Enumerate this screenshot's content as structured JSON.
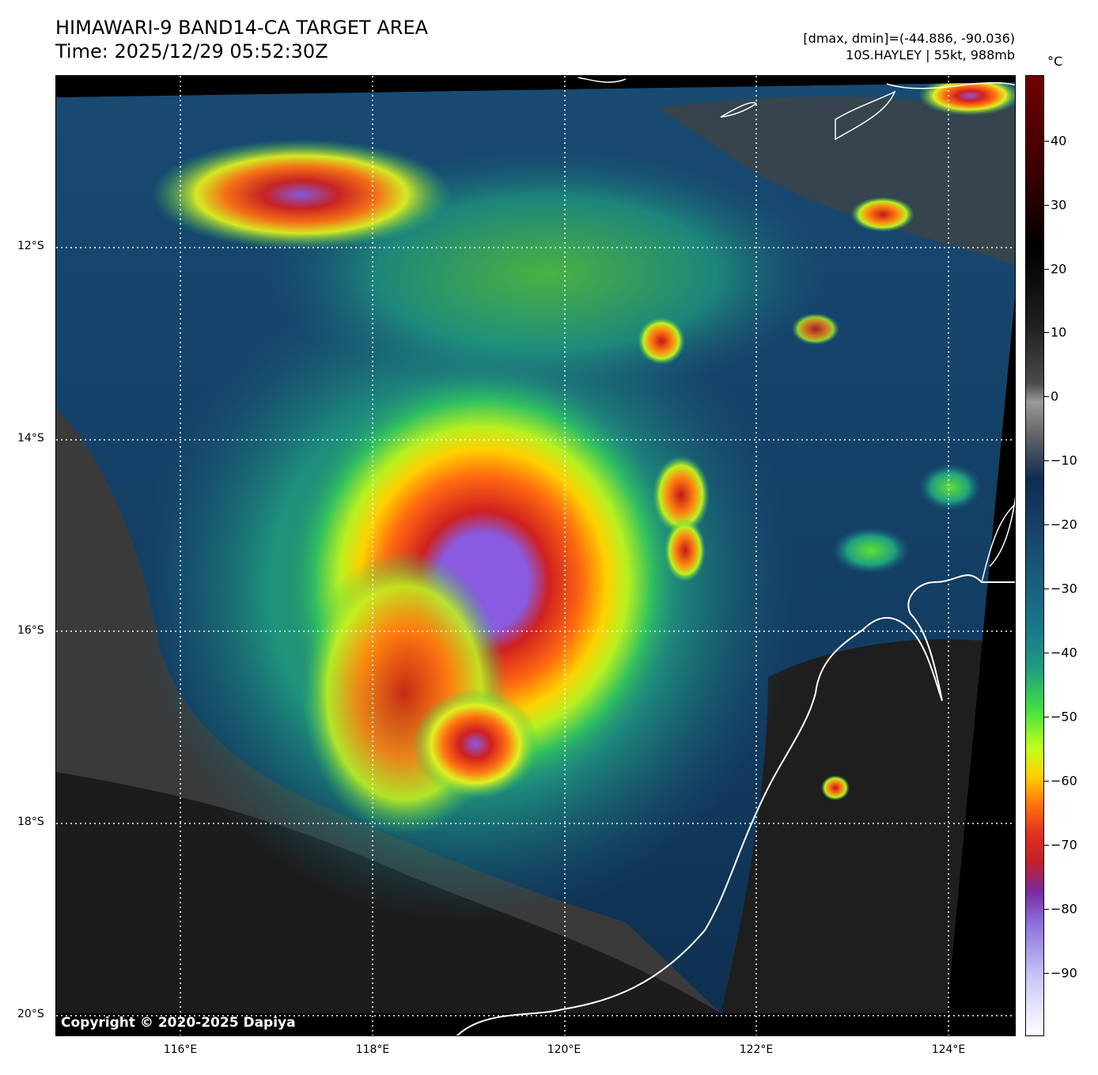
{
  "header": {
    "title_line1": "HIMAWARI-9 BAND14-CA TARGET AREA",
    "title_line2": "Time: 2025/12/29 05:52:30Z",
    "dminmax": "[dmax, dmin]=(-44.886, -90.036)",
    "storm": "10S.HAYLEY | 55kt, 988mb"
  },
  "map": {
    "copyright": "Copyright © 2020-2025 Dapiya",
    "lat_labels": [
      "12°S",
      "14°S",
      "16°S",
      "18°S",
      "20°S"
    ],
    "lon_labels": [
      "116°E",
      "118°E",
      "120°E",
      "122°E",
      "124°E"
    ]
  },
  "colorbar": {
    "unit": "°C",
    "ticks": [
      "40",
      "30",
      "20",
      "10",
      "0",
      "−10",
      "−20",
      "−30",
      "−40",
      "−50",
      "−60",
      "−70",
      "−80",
      "−90"
    ]
  }
}
